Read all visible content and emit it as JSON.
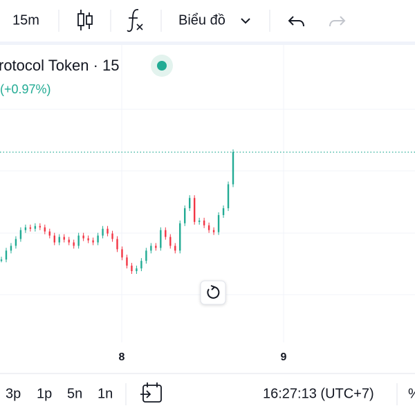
{
  "toolbar": {
    "interval": "15m",
    "chart_type": "Biểu đồ"
  },
  "legend": {
    "title": "rotocol Token · 15",
    "change": "(+0.97%)"
  },
  "chart_data": {
    "type": "candle",
    "values": [
      75,
      88,
      95,
      105,
      118,
      122,
      120,
      124,
      122,
      116,
      110,
      100,
      108,
      104,
      100,
      95,
      110,
      106,
      103,
      100,
      110,
      120,
      113,
      105,
      90,
      78,
      66,
      58,
      62,
      73,
      88,
      95,
      92,
      118,
      108,
      95,
      88,
      128,
      150,
      165,
      130,
      132,
      125,
      118,
      115,
      140,
      150,
      185,
      232
    ],
    "x_labels": [
      "8",
      "9"
    ]
  },
  "footer": {
    "ranges": [
      "3p",
      "1p",
      "5n",
      "1n"
    ],
    "clock": "16:27:13 (UTC+7)",
    "extra": "%"
  }
}
